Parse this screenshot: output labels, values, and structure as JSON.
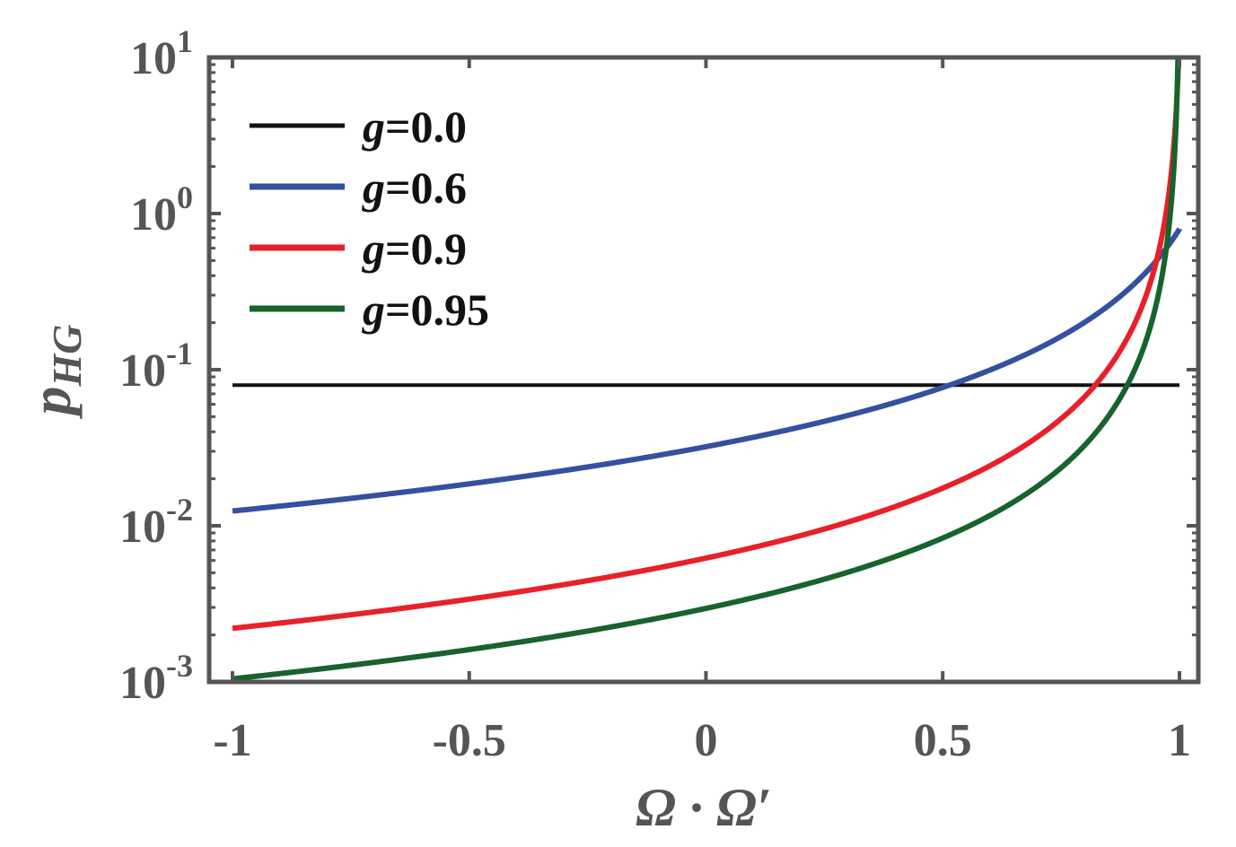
{
  "chart_data": {
    "type": "line",
    "title": "",
    "xlabel": "Ω · Ω′",
    "ylabel": {
      "base": "p",
      "subscript": "HG"
    },
    "xlim": [
      -1,
      1
    ],
    "ylim": [
      0.001,
      10
    ],
    "yscale": "log",
    "grid": false,
    "legend_position": "top-left",
    "x_ticks": [
      {
        "value": -1,
        "label": "-1"
      },
      {
        "value": -0.5,
        "label": "-0.5"
      },
      {
        "value": 0,
        "label": "0"
      },
      {
        "value": 0.5,
        "label": "0.5"
      },
      {
        "value": 1,
        "label": "1"
      }
    ],
    "y_ticks": [
      {
        "value": 0.001,
        "base": "10",
        "exp": "-3"
      },
      {
        "value": 0.01,
        "base": "10",
        "exp": "-2"
      },
      {
        "value": 0.1,
        "base": "10",
        "exp": "-1"
      },
      {
        "value": 1,
        "base": "10",
        "exp": "0"
      },
      {
        "value": 10,
        "base": "10",
        "exp": "1"
      }
    ],
    "series": [
      {
        "name": "g=0.0",
        "label_italic": "g",
        "label_rest": "=0.0",
        "color": "#111111",
        "g": 0.0,
        "x": [
          -1,
          -0.5,
          0,
          0.5,
          0.8,
          0.9,
          0.95,
          0.98,
          1
        ],
        "y": [
          0.0796,
          0.0796,
          0.0796,
          0.0796,
          0.0796,
          0.0796,
          0.0796,
          0.0796,
          0.0796
        ]
      },
      {
        "name": "g=0.6",
        "label_italic": "g",
        "label_rest": "=0.6",
        "color": "#3450a0",
        "g": 0.6,
        "x": [
          -1,
          -0.5,
          0,
          0.5,
          0.8,
          0.9,
          0.95,
          0.98,
          1
        ],
        "y": [
          0.0124,
          0.0186,
          0.0322,
          0.0746,
          0.184,
          0.317,
          0.436,
          0.54,
          0.622
        ]
      },
      {
        "name": "g=0.9",
        "label_italic": "g",
        "label_rest": "=0.9",
        "color": "#e8202a",
        "g": 0.9,
        "x": [
          -1,
          -0.5,
          0,
          0.5,
          0.8,
          0.9,
          0.95,
          0.98,
          1
        ],
        "y": [
          0.00218,
          0.00335,
          0.0062,
          0.0175,
          0.0732,
          0.24,
          0.737,
          2.77,
          7.56
        ]
      },
      {
        "name": "g=0.95",
        "label_italic": "g",
        "label_rest": "=0.95",
        "color": "#17632c",
        "g": 0.95,
        "x": [
          -1,
          -0.5,
          0,
          0.5,
          0.8,
          0.9,
          0.95,
          0.98,
          1
        ],
        "y": [
          0.00105,
          0.00162,
          0.00301,
          0.00867,
          0.0387,
          0.136,
          0.493,
          2.76,
          15.5
        ]
      }
    ]
  }
}
